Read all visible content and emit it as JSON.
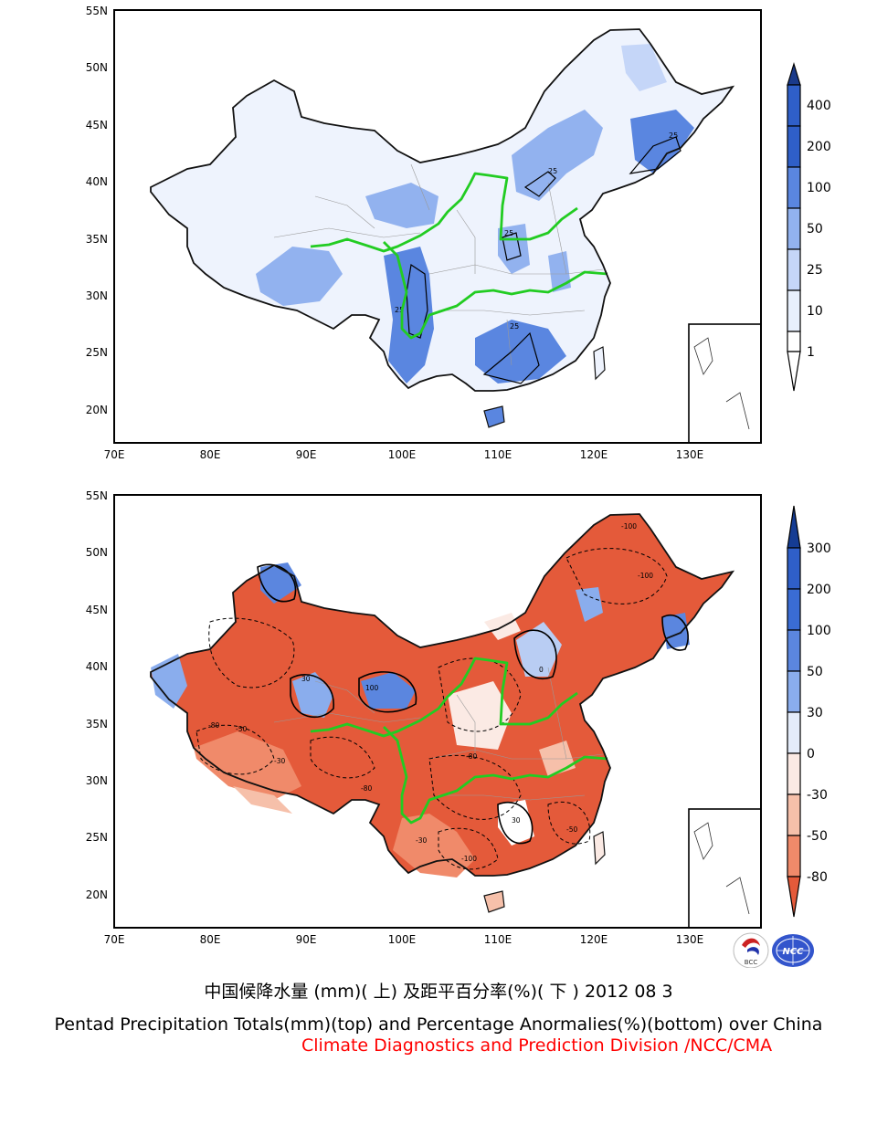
{
  "colors": {
    "accent_river": "#22cc22",
    "border": "#111111",
    "credit_red": "#ff0000",
    "precip_scale": [
      "#ffffff",
      "#e8f0fd",
      "#c5d6f8",
      "#92b2ef",
      "#5a86e0",
      "#2f5fc8",
      "#1a3a8a"
    ],
    "anomaly_scale": [
      "#e45a3a",
      "#f08a6a",
      "#f6c0aa",
      "#fbeae4",
      "#ffffff",
      "#e4ecfa",
      "#b9cdf3",
      "#8aaded",
      "#5b86df",
      "#2f5fc8",
      "#153c93"
    ]
  },
  "top_map": {
    "lat_labels": [
      "55N",
      "50N",
      "45N",
      "40N",
      "35N",
      "30N",
      "25N",
      "20N"
    ],
    "lon_labels": [
      "70E",
      "80E",
      "90E",
      "100E",
      "110E",
      "120E",
      "130E"
    ],
    "contour_labels": [
      "25",
      "25",
      "25",
      "25",
      "25"
    ],
    "colorbar_labels": [
      "400",
      "200",
      "100",
      "50",
      "25",
      "10",
      "1"
    ]
  },
  "bottom_map": {
    "lat_labels": [
      "55N",
      "50N",
      "45N",
      "40N",
      "35N",
      "30N",
      "25N",
      "20N"
    ],
    "lon_labels": [
      "70E",
      "80E",
      "90E",
      "100E",
      "110E",
      "120E",
      "130E"
    ],
    "contour_labels": [
      "-100",
      "-100",
      "-80",
      "-50",
      "-30",
      "100",
      "30",
      "0",
      "-80",
      "-50",
      "-30",
      "30",
      "-100",
      "-80"
    ],
    "colorbar_labels": [
      "300",
      "200",
      "100",
      "50",
      "30",
      "0",
      "-30",
      "-50",
      "-80"
    ]
  },
  "logos": {
    "bcc": "BCC",
    "ncc": "NCC"
  },
  "captions": {
    "cn": "中国候降水量 (mm)( 上) 及距平百分率(%)( 下 ) 2012 08 3",
    "en": "Pentad Precipitation Totals(mm)(top) and Percentage Anormalies(%)(bottom) over China",
    "org": "Climate Diagnostics and Prediction Division /NCC/CMA"
  }
}
